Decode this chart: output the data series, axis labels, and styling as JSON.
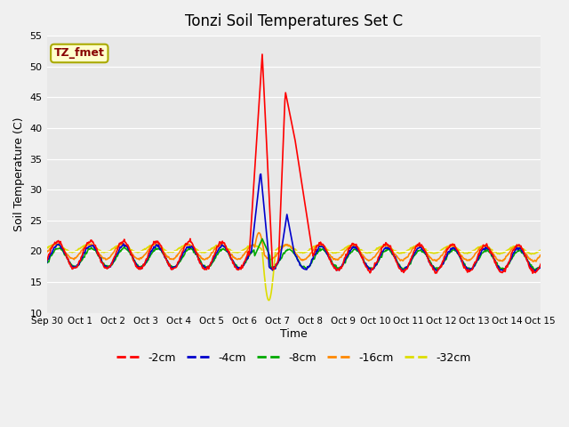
{
  "title": "Tonzi Soil Temperatures Set C",
  "xlabel": "Time",
  "ylabel": "Soil Temperature (C)",
  "ylim": [
    10,
    55
  ],
  "yticks": [
    10,
    15,
    20,
    25,
    30,
    35,
    40,
    45,
    50,
    55
  ],
  "x_labels": [
    "Sep 30",
    "Oct 1",
    "Oct 2",
    "Oct 3",
    "Oct 4",
    "Oct 5",
    "Oct 6",
    "Oct 7",
    "Oct 8",
    "Oct 9",
    "Oct 10",
    "Oct 11",
    "Oct 12",
    "Oct 13",
    "Oct 14",
    "Oct 15"
  ],
  "n_days": 16,
  "series_colors": [
    "#ff0000",
    "#0000cc",
    "#00aa00",
    "#ff8800",
    "#dddd00"
  ],
  "series_labels": [
    "-2cm",
    "-4cm",
    "-8cm",
    "-16cm",
    "-32cm"
  ],
  "annotation_text": "TZ_fmet",
  "annotation_bg": "#ffffcc",
  "annotation_border": "#aaaa00",
  "annotation_text_color": "#880000",
  "fig_bg": "#f0f0f0",
  "plot_bg": "#e8e8e8"
}
